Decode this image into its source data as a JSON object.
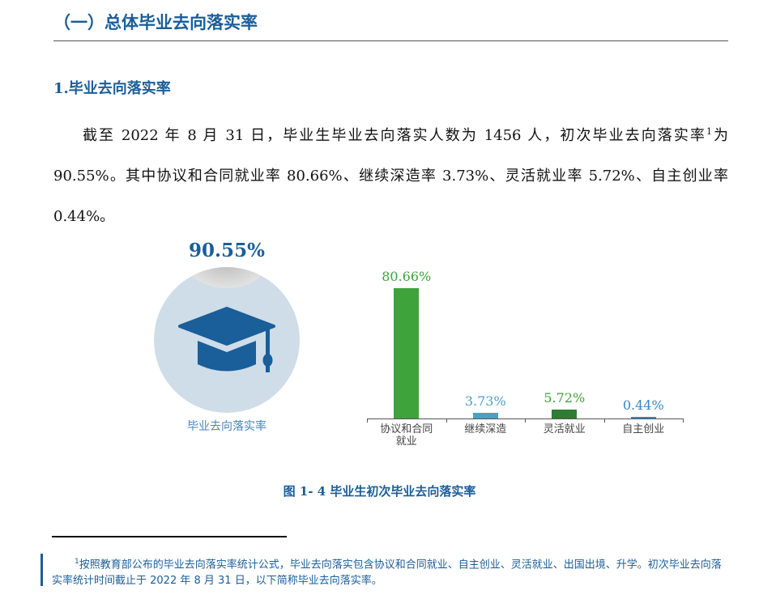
{
  "section_title": "（一）总体毕业去向落实率",
  "subsection_title": "1.毕业去向落实率",
  "paragraph": {
    "before": "截至 2022 年 8 月 31 日，毕业生毕业去向落实人数为 1456 人，初次毕业去向落实率",
    "sup": "1",
    "after": "为 90.55%。其中协议和合同就业率 80.66%、继续深造率 3.73%、灵活就业率 5.72%、自主创业率 0.44%。"
  },
  "overall": {
    "value_label": "90.55%",
    "value": 90.55,
    "label": "毕业去向落实率",
    "icon": "graduation-cap-icon"
  },
  "chart_data": {
    "type": "bar",
    "categories": [
      "协议和合同就业",
      "继续深造",
      "灵活就业",
      "自主创业"
    ],
    "category_lines": [
      [
        "协议和合同",
        "就业"
      ],
      [
        "继续深造"
      ],
      [
        "灵活就业"
      ],
      [
        "自主创业"
      ]
    ],
    "values": [
      80.66,
      3.73,
      5.72,
      0.44
    ],
    "data_labels": [
      "80.66%",
      "3.73%",
      "5.72%",
      "0.44%"
    ],
    "colors": [
      "#3da33a",
      "#4aa0c8",
      "#2e7d32",
      "#3a86c0"
    ],
    "label_colors": [
      "#3da33a",
      "#4aa0c8",
      "#3da33a",
      "#3a86c0"
    ],
    "ylim": [
      0,
      100
    ],
    "grid": false
  },
  "figure_caption": "图 1- 4  毕业生初次毕业去向落实率",
  "footnote": {
    "sup": "1",
    "text": "按照教育部公布的毕业去向落实率统计公式，毕业去向落实包含协议和合同就业、自主创业、灵活就业、出国出境、升学。初次毕业去向落实率统计时间截止于 2022 年 8 月 31 日，以下简称毕业去向落实率。"
  }
}
